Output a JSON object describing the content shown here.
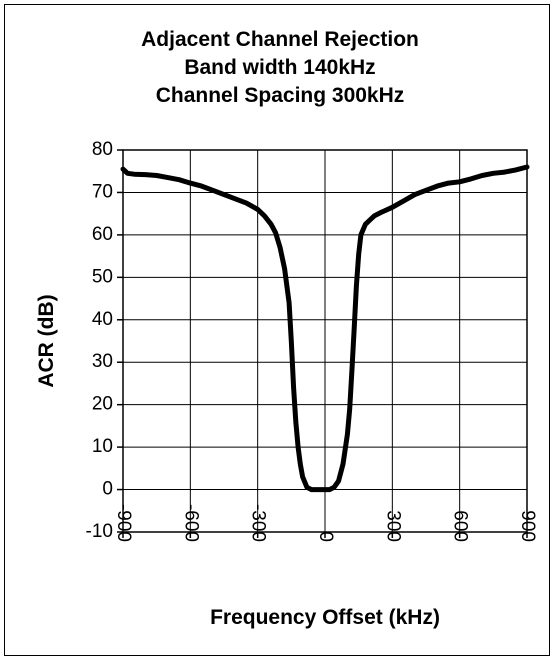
{
  "chart_data": {
    "type": "line",
    "title_lines": [
      "Adjacent Channel Rejection",
      "Band width 140kHz",
      "Channel Spacing 300kHz"
    ],
    "xlabel": "Frequency Offset (kHz)",
    "ylabel": "ACR (dB)",
    "xlim": [
      -900,
      900
    ],
    "ylim": [
      -10,
      80
    ],
    "x_ticks": [
      -900,
      -600,
      -300,
      0,
      300,
      600,
      900
    ],
    "x_tick_labels": [
      "-900",
      "-600",
      "-300",
      "0",
      "300",
      "600",
      "900"
    ],
    "y_ticks": [
      -10,
      0,
      10,
      20,
      30,
      40,
      50,
      60,
      70,
      80
    ],
    "y_tick_labels": [
      "-10",
      "0",
      "10",
      "20",
      "30",
      "40",
      "50",
      "60",
      "70",
      "80"
    ],
    "grid": true,
    "legend": "none",
    "series": [
      {
        "color": "#000000",
        "x": [
          -900,
          -880,
          -850,
          -800,
          -750,
          -700,
          -650,
          -600,
          -550,
          -500,
          -450,
          -400,
          -350,
          -300,
          -270,
          -240,
          -220,
          -200,
          -180,
          -160,
          -150,
          -140,
          -130,
          -120,
          -110,
          -100,
          -80,
          -60,
          -40,
          -20,
          0,
          20,
          40,
          60,
          80,
          100,
          110,
          120,
          130,
          140,
          150,
          160,
          180,
          200,
          220,
          250,
          300,
          350,
          400,
          450,
          500,
          550,
          600,
          650,
          700,
          750,
          800,
          850,
          900
        ],
        "y": [
          75.5,
          74.5,
          74.3,
          74.2,
          74.0,
          73.5,
          73.0,
          72.2,
          71.5,
          70.5,
          69.5,
          68.5,
          67.5,
          66.0,
          64.5,
          62.5,
          60.5,
          57.0,
          52.0,
          44.0,
          35.0,
          24.0,
          16.0,
          10.0,
          6.0,
          3.0,
          0.5,
          0.0,
          0.0,
          0.0,
          0.0,
          0.0,
          0.5,
          2.0,
          6.0,
          13.0,
          19.0,
          28.0,
          38.0,
          48.0,
          55.5,
          60.0,
          62.5,
          63.5,
          64.5,
          65.3,
          66.5,
          68.0,
          69.5,
          70.5,
          71.5,
          72.2,
          72.5,
          73.2,
          74.0,
          74.5,
          74.8,
          75.3,
          76.0
        ]
      }
    ]
  }
}
